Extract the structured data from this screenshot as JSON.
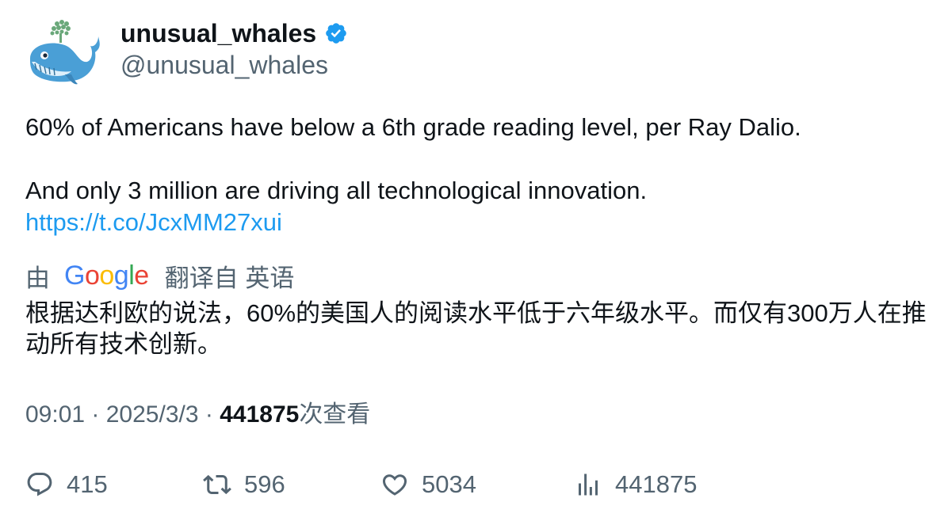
{
  "author": {
    "display_name": "unusual_whales",
    "handle": "@unusual_whales",
    "verified": true,
    "avatar_icon": "whale-avatar-icon",
    "verified_icon": "verified-badge-icon"
  },
  "tweet": {
    "line1": "60% of Americans have below a 6th grade reading level, per Ray Dalio.",
    "line2": "And only 3 million are driving all technological innovation.",
    "link": "https://t.co/JcxMM27xui"
  },
  "translation": {
    "prefix": "由",
    "provider": "Google",
    "suffix": "翻译自 英语",
    "text": "根据达利欧的说法，60%的美国人的阅读水平低于六年级水平。而仅有300万人在推动所有技术创新。"
  },
  "meta": {
    "time": "09:01",
    "separator": "·",
    "date": "2025/3/3",
    "views": "441875",
    "views_label": "次查看"
  },
  "actions": {
    "replies": "415",
    "retweets": "596",
    "likes": "5034",
    "views": "441875"
  },
  "colors": {
    "text_primary": "#0f1419",
    "text_secondary": "#536471",
    "link": "#1d9bf0",
    "verified": "#1d9bf0"
  }
}
